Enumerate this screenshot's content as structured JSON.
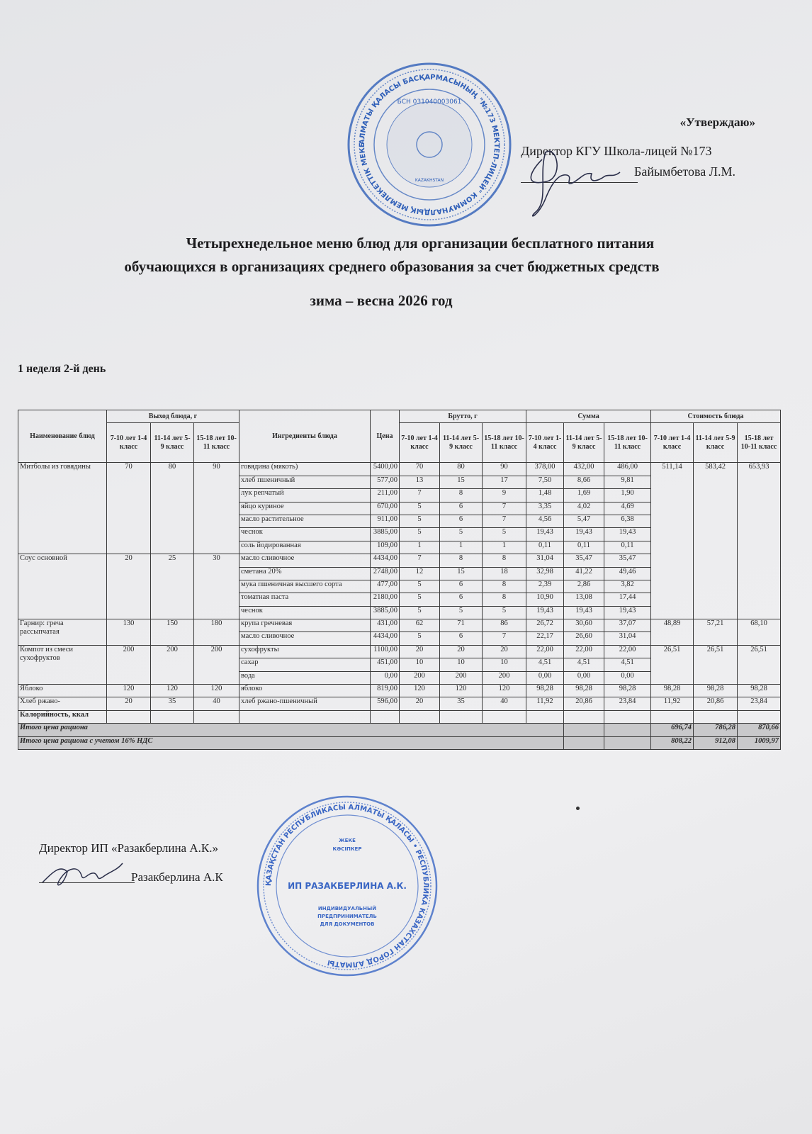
{
  "approval": {
    "label": "«Утверждаю»",
    "position": "Директор КГУ Школа-лицей №173",
    "name": "Байымбетова Л.М."
  },
  "stamp_top": {
    "text": "АЛМАТЫ ҚАЛАСЫ ӘКІМДІГІ ... БАСҚАРМАСЫНЫҢ \"№173 МЕКТЕП-ЛИЦЕЙ\" КОММУНАЛДЫҚ МЕМЛЕКЕТТІК МЕКЕМЕСІ",
    "bin": "БСН 031040003061",
    "center": "KAZAKHSTAN",
    "color": "#2f5fb8"
  },
  "title": {
    "line1": "Четырехнедельное меню блюд для организации бесплатного питания",
    "line2": "обучающихся в организациях среднего образования за счет бюджетных средств",
    "line3": "зима – весна  2026 год"
  },
  "week_day": "1 неделя 2-й день",
  "table": {
    "headers": {
      "dish": "Наименование блюд",
      "yield": "Выход блюда, г",
      "ingredients": "Ингредиенты блюда",
      "price": "Цена",
      "brutto": "Брутто, г",
      "sum": "Сумма",
      "cost": "Стоимость блюда",
      "age_groups": [
        "7-10 лет 1-4 класс",
        "11-14 лет 5-9 класс",
        "15-18 лет 10-11 класс"
      ]
    },
    "dishes": [
      {
        "name": "Митболы из говядины",
        "yield": [
          "70",
          "80",
          "90"
        ],
        "cost": [
          "511,14",
          "583,42",
          "653,93"
        ],
        "ingredients": [
          {
            "name": "говядина (мякоть)",
            "price": "5400,00",
            "brutto": [
              "70",
              "80",
              "90"
            ],
            "sum": [
              "378,00",
              "432,00",
              "486,00"
            ]
          },
          {
            "name": "хлеб пшеничный",
            "price": "577,00",
            "brutto": [
              "13",
              "15",
              "17"
            ],
            "sum": [
              "7,50",
              "8,66",
              "9,81"
            ]
          },
          {
            "name": "лук репчатый",
            "price": "211,00",
            "brutto": [
              "7",
              "8",
              "9"
            ],
            "sum": [
              "1,48",
              "1,69",
              "1,90"
            ]
          },
          {
            "name": "яйцо куриное",
            "price": "670,00",
            "brutto": [
              "5",
              "6",
              "7"
            ],
            "sum": [
              "3,35",
              "4,02",
              "4,69"
            ]
          },
          {
            "name": "масло растительное",
            "price": "911,00",
            "brutto": [
              "5",
              "6",
              "7"
            ],
            "sum": [
              "4,56",
              "5,47",
              "6,38"
            ]
          },
          {
            "name": "чеснок",
            "price": "3885,00",
            "brutto": [
              "5",
              "5",
              "5"
            ],
            "sum": [
              "19,43",
              "19,43",
              "19,43"
            ]
          },
          {
            "name": "соль йодированная",
            "price": "109,00",
            "brutto": [
              "1",
              "1",
              "1"
            ],
            "sum": [
              "0,11",
              "0,11",
              "0,11"
            ]
          }
        ]
      },
      {
        "name": "Соус основной",
        "yield": [
          "20",
          "25",
          "30"
        ],
        "cost": null,
        "ingredients": [
          {
            "name": "масло сливочное",
            "price": "4434,00",
            "brutto": [
              "7",
              "8",
              "8"
            ],
            "sum": [
              "31,04",
              "35,47",
              "35,47"
            ]
          },
          {
            "name": "сметана 20%",
            "price": "2748,00",
            "brutto": [
              "12",
              "15",
              "18"
            ],
            "sum": [
              "32,98",
              "41,22",
              "49,46"
            ]
          },
          {
            "name": "мука пшеничная высшего сорта",
            "price": "477,00",
            "brutto": [
              "5",
              "6",
              "8"
            ],
            "sum": [
              "2,39",
              "2,86",
              "3,82"
            ]
          },
          {
            "name": "томатная паста",
            "price": "2180,00",
            "brutto": [
              "5",
              "6",
              "8"
            ],
            "sum": [
              "10,90",
              "13,08",
              "17,44"
            ]
          },
          {
            "name": "чеснок",
            "price": "3885,00",
            "brutto": [
              "5",
              "5",
              "5"
            ],
            "sum": [
              "19,43",
              "19,43",
              "19,43"
            ]
          }
        ]
      },
      {
        "name": "Гарнир: греча рассыпчатая",
        "yield": [
          "130",
          "150",
          "180"
        ],
        "cost": [
          "48,89",
          "57,21",
          "68,10"
        ],
        "ingredients": [
          {
            "name": "крупа гречневая",
            "price": "431,00",
            "brutto": [
              "62",
              "71",
              "86"
            ],
            "sum": [
              "26,72",
              "30,60",
              "37,07"
            ]
          },
          {
            "name": "масло сливочное",
            "price": "4434,00",
            "brutto": [
              "5",
              "6",
              "7"
            ],
            "sum": [
              "22,17",
              "26,60",
              "31,04"
            ]
          }
        ]
      },
      {
        "name": "Компот из смеси сухофруктов",
        "yield": [
          "200",
          "200",
          "200"
        ],
        "cost": [
          "26,51",
          "26,51",
          "26,51"
        ],
        "ingredients": [
          {
            "name": "сухофрукты",
            "price": "1100,00",
            "brutto": [
              "20",
              "20",
              "20"
            ],
            "sum": [
              "22,00",
              "22,00",
              "22,00"
            ]
          },
          {
            "name": "сахар",
            "price": "451,00",
            "brutto": [
              "10",
              "10",
              "10"
            ],
            "sum": [
              "4,51",
              "4,51",
              "4,51"
            ]
          },
          {
            "name": "вода",
            "price": "0,00",
            "brutto": [
              "200",
              "200",
              "200"
            ],
            "sum": [
              "0,00",
              "0,00",
              "0,00"
            ]
          }
        ]
      },
      {
        "name": "Яблоко",
        "yield": [
          "120",
          "120",
          "120"
        ],
        "cost": [
          "98,28",
          "98,28",
          "98,28"
        ],
        "ingredients": [
          {
            "name": "яблоко",
            "price": "819,00",
            "brutto": [
              "120",
              "120",
              "120"
            ],
            "sum": [
              "98,28",
              "98,28",
              "98,28"
            ]
          }
        ]
      },
      {
        "name": "Хлеб ржано-",
        "yield": [
          "20",
          "35",
          "40"
        ],
        "cost": [
          "11,92",
          "20,86",
          "23,84"
        ],
        "ingredients": [
          {
            "name": "хлеб ржано-пшеничный",
            "price": "596,00",
            "brutto": [
              "20",
              "35",
              "40"
            ],
            "sum": [
              "11,92",
              "20,86",
              "23,84"
            ]
          }
        ]
      }
    ],
    "calories_label": "Калорийность, ккал",
    "total_label": "Итого цена рациона",
    "total": [
      "696,74",
      "786,28",
      "870,66"
    ],
    "total_vat_label": "Итого цена рациона с учетом 16% НДС",
    "total_vat": [
      "808,22",
      "912,08",
      "1009,97"
    ]
  },
  "contractor": {
    "position": "Директор ИП «Разакберлина А.К.»",
    "name": "Разакберлина А.К"
  },
  "stamp_bottom": {
    "ring": "ҚАЗАҚСТАН РЕСПУБЛИКАСЫ АЛМАТЫ ҚАЛАСЫ • РЕСПУБЛИКА КАЗАХСТАН ГОРОД АЛМАТЫ",
    "top": "ЖЕКЕ КӘСІПКЕР",
    "middle": "ИП РАЗАКБЕРЛИНА А.К.",
    "bottom": "ИНДИВИДУАЛЬНЫЙ ПРЕДПРИНИМАТЕЛЬ ДЛЯ ДОКУМЕНТОВ",
    "color": "#3a66c4"
  }
}
